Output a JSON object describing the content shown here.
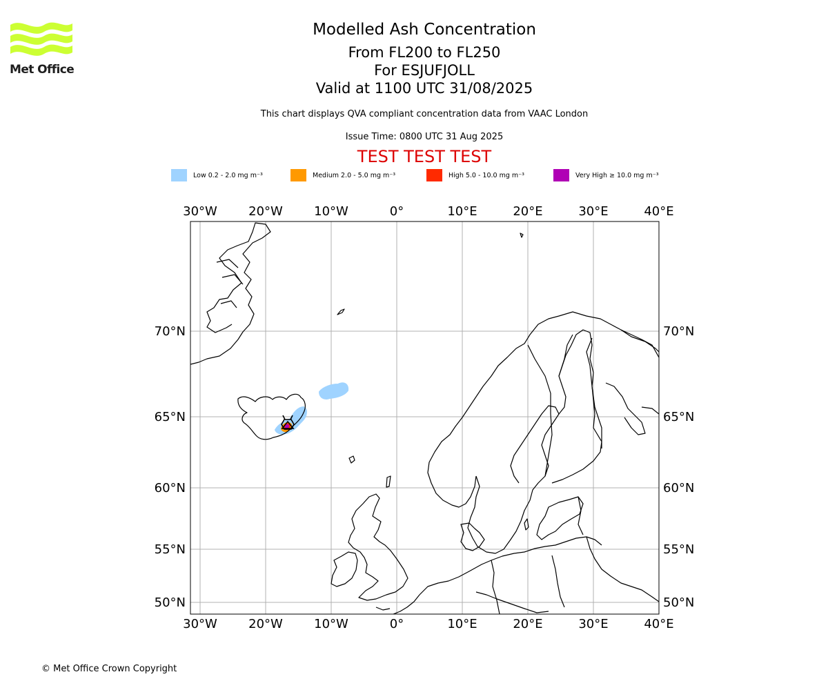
{
  "branding": {
    "logo_text": "Met Office",
    "logo_color": "#ccff33"
  },
  "header": {
    "title": "Modelled Ash Concentration",
    "levels": "From FL200 to FL250",
    "source": "For ESJUFJOLL",
    "valid": "Valid at 1100 UTC 31/08/2025",
    "note": "This chart displays QVA compliant concentration data from VAAC London",
    "issue_time": "Issue Time: 0800 UTC 31 Aug 2025",
    "test_banner": "TEST TEST TEST",
    "test_color": "#dd0000"
  },
  "legend": {
    "items": [
      {
        "label": "Low 0.2 - 2.0 mg m⁻³",
        "color": "#9fd3ff"
      },
      {
        "label": "Medium 2.0 - 5.0 mg m⁻³",
        "color": "#ff9900"
      },
      {
        "label": "High 5.0 - 10.0 mg m⁻³",
        "color": "#ff2a00"
      },
      {
        "label": "Very High ≥ 10.0 mg m⁻³",
        "color": "#b000b5"
      }
    ]
  },
  "map": {
    "lon_ticks": [
      "30°W",
      "20°W",
      "10°W",
      "0°",
      "10°E",
      "20°E",
      "30°E",
      "40°E"
    ],
    "lat_ticks": [
      "70°N",
      "65°N",
      "60°N",
      "55°N",
      "50°N"
    ],
    "lon_range": [
      -31.5,
      40
    ],
    "lat_range": [
      49,
      75.5
    ],
    "grid": true,
    "volcano_marker": "hexagon-volcano-icon"
  },
  "footer": {
    "copyright": "© Met Office Crown Copyright"
  }
}
